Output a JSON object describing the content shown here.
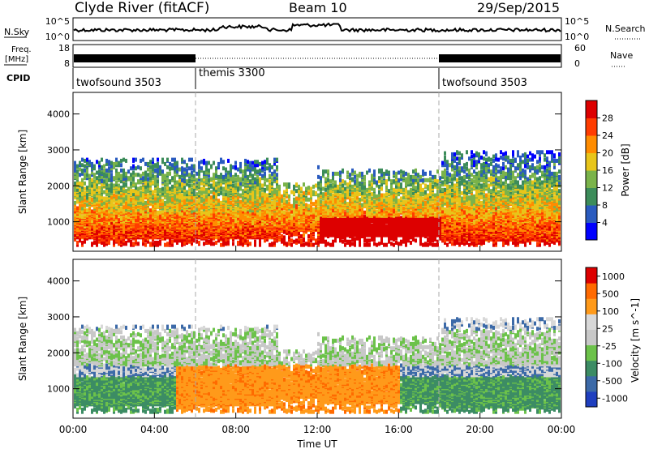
{
  "header": {
    "station": "Clyde River (fitACF)",
    "beam": "Beam 10",
    "date": "29/Sep/2015"
  },
  "status_panels": {
    "nsky_label": "N.Sky",
    "nsky_ticks": [
      "10^5",
      "10^0"
    ],
    "nsearch_label": "N.Search",
    "nsearch_ticks": [
      "10^5",
      "10^0"
    ],
    "freq_label_1": "Freq.",
    "freq_label_2": "[MHz]",
    "freq_ticks": [
      "18",
      "8"
    ],
    "nave_label": "Nave",
    "nave_ticks": [
      "60",
      "0"
    ],
    "cpid_label": "CPID"
  },
  "cpid_segments": [
    {
      "label": "twofsound 3503",
      "start_hour": 0,
      "end_hour": 6
    },
    {
      "label": "themis 3300",
      "start_hour": 6,
      "end_hour": 18
    },
    {
      "label": "twofsound 3503",
      "start_hour": 18,
      "end_hour": 24
    }
  ],
  "chart_data": [
    {
      "type": "heatmap",
      "quantity": "power",
      "ylabel": "Slant Range [km]",
      "colorbar_label": "Power [dB]",
      "colorbar_ticks": [
        "4",
        "8",
        "12",
        "16",
        "20",
        "24",
        "28"
      ],
      "colorbar_colors": [
        "#0000ff",
        "#2a5bbf",
        "#3c8c5a",
        "#7ab34a",
        "#e8c51a",
        "#ff8c00",
        "#ff3c00",
        "#dd0000"
      ],
      "x_ticks": [
        "00:00",
        "04:00",
        "08:00",
        "12:00",
        "16:00",
        "20:00",
        "00:00"
      ],
      "y_ticks": [
        "1000",
        "2000",
        "3000",
        "4000"
      ],
      "xlim_hours": [
        0,
        24
      ],
      "ylim_km": [
        180,
        4600
      ],
      "grid": false
    },
    {
      "type": "heatmap",
      "quantity": "velocity",
      "ylabel": "Slant Range [km]",
      "colorbar_label": "Velocity [m s^-1]",
      "colorbar_ticks": [
        "1000",
        "500",
        "100",
        "25",
        "-25",
        "-100",
        "-500",
        "-1000"
      ],
      "colorbar_colors": [
        "#1f3fbf",
        "#3c6aa8",
        "#3c8c64",
        "#6cc24a",
        "#c8c8c8",
        "#d8d8d8",
        "#ff9a1a",
        "#ff6a00",
        "#dd0000"
      ],
      "x_ticks": [
        "00:00",
        "04:00",
        "08:00",
        "12:00",
        "16:00",
        "20:00",
        "00:00"
      ],
      "y_ticks": [
        "1000",
        "2000",
        "3000",
        "4000"
      ],
      "xlabel": "Time UT",
      "xlim_hours": [
        0,
        24
      ],
      "ylim_km": [
        180,
        4600
      ],
      "grid": false
    }
  ]
}
